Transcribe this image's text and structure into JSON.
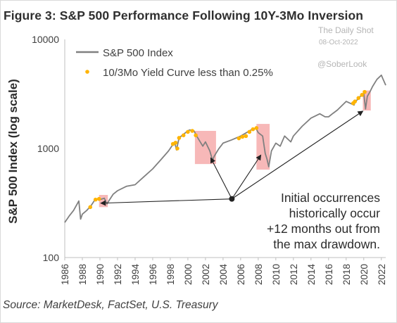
{
  "figure_title": "Figure 3: S&P 500 Performance Following 10Y-3Mo Inversion",
  "watermark": {
    "source": "The Daily Shot",
    "date": "08-Oct-2022",
    "handle": "@SoberLook"
  },
  "source_note": "Source: MarketDesk, FactSet, U.S. Treasury",
  "annotation_lines": [
    "Initial occurrences",
    "historically occur",
    "+12 months out from",
    "the max drawdown."
  ],
  "colors": {
    "index_line": "#808080",
    "curve_highlight": "#ffb400",
    "drawdown_box": "#f4a0a0",
    "arrow": "#222222"
  },
  "chart_data": {
    "type": "line",
    "ylabel": "S&P 500 Index (log scale)",
    "y_scale": "log",
    "ylim": [
      100,
      10000
    ],
    "y_ticks": [
      "100",
      "1000",
      "10000"
    ],
    "xlim": [
      1986,
      2022.5
    ],
    "x_ticks": [
      "1986",
      "1988",
      "1990",
      "1992",
      "1994",
      "1996",
      "1998",
      "2000",
      "2002",
      "2004",
      "2006",
      "2008",
      "2010",
      "2012",
      "2014",
      "2016",
      "2018",
      "2020",
      "2022"
    ],
    "grid": false,
    "legend_position": "top-left",
    "series": [
      {
        "name": "S&P 500 Index",
        "x": [
          1986.0,
          1986.5,
          1987.0,
          1987.6,
          1987.8,
          1988.0,
          1988.5,
          1989.0,
          1989.5,
          1990.0,
          1990.5,
          1990.8,
          1991.0,
          1991.5,
          1992.0,
          1993.0,
          1994.0,
          1995.0,
          1996.0,
          1997.0,
          1997.8,
          1998.5,
          1998.7,
          1999.0,
          1999.5,
          2000.0,
          2000.2,
          2000.7,
          2001.0,
          2001.7,
          2002.0,
          2002.5,
          2002.8,
          2003.0,
          2003.5,
          2004.0,
          2005.0,
          2006.0,
          2007.0,
          2007.5,
          2007.8,
          2008.0,
          2008.5,
          2008.8,
          2009.0,
          2009.2,
          2009.5,
          2010.0,
          2010.5,
          2011.0,
          2011.7,
          2012.0,
          2013.0,
          2014.0,
          2015.0,
          2015.6,
          2016.0,
          2016.5,
          2017.0,
          2018.0,
          2018.9,
          2019.0,
          2019.5,
          2020.0,
          2020.2,
          2020.4,
          2020.7,
          2021.0,
          2021.5,
          2022.0,
          2022.2,
          2022.5
        ],
        "y": [
          210,
          240,
          270,
          330,
          225,
          250,
          270,
          300,
          345,
          340,
          350,
          310,
          330,
          380,
          410,
          450,
          465,
          550,
          650,
          800,
          950,
          1150,
          970,
          1250,
          1350,
          1450,
          1480,
          1450,
          1300,
          1050,
          1150,
          950,
          780,
          850,
          990,
          1120,
          1200,
          1300,
          1450,
          1530,
          1500,
          1400,
          1300,
          900,
          800,
          680,
          950,
          1120,
          1050,
          1300,
          1150,
          1300,
          1600,
          1900,
          2080,
          1950,
          1950,
          2100,
          2250,
          2700,
          2500,
          2650,
          2950,
          3200,
          2300,
          3000,
          3300,
          3700,
          4300,
          4700,
          4300,
          3800
        ]
      },
      {
        "name": "10/3Mo Yield Curve less than 0.25%",
        "x": [
          1988.9,
          1989.5,
          1989.9,
          1998.3,
          1998.6,
          1998.8,
          1999.0,
          1999.5,
          2000.0,
          2000.5,
          2000.9,
          2005.8,
          2006.2,
          2006.6,
          2007.0,
          2007.4,
          2007.8,
          2018.8,
          2019.0,
          2019.4,
          2019.8,
          2020.1
        ],
        "y": [
          290,
          340,
          345,
          1100,
          1130,
          1000,
          1250,
          1320,
          1420,
          1450,
          1320,
          1240,
          1280,
          1300,
          1420,
          1500,
          1540,
          2600,
          2700,
          2900,
          3100,
          3300
        ]
      }
    ],
    "drawdown_boxes": [
      {
        "x0": 1989.9,
        "x1": 1990.9,
        "y0": 290,
        "y1": 375
      },
      {
        "x0": 2000.8,
        "x1": 2003.2,
        "y0": 720,
        "y1": 1450
      },
      {
        "x0": 2007.8,
        "x1": 2009.3,
        "y0": 640,
        "y1": 1680
      },
      {
        "x0": 2019.9,
        "x1": 2020.8,
        "y0": 2230,
        "y1": 3400
      }
    ],
    "arrow_origin": {
      "x": 2005.0,
      "y": 345
    },
    "arrow_targets": [
      {
        "x": 1990.1,
        "y": 315
      },
      {
        "x": 2002.6,
        "y": 820
      },
      {
        "x": 2008.3,
        "y": 870
      },
      {
        "x": 2019.9,
        "y": 2200
      }
    ]
  }
}
